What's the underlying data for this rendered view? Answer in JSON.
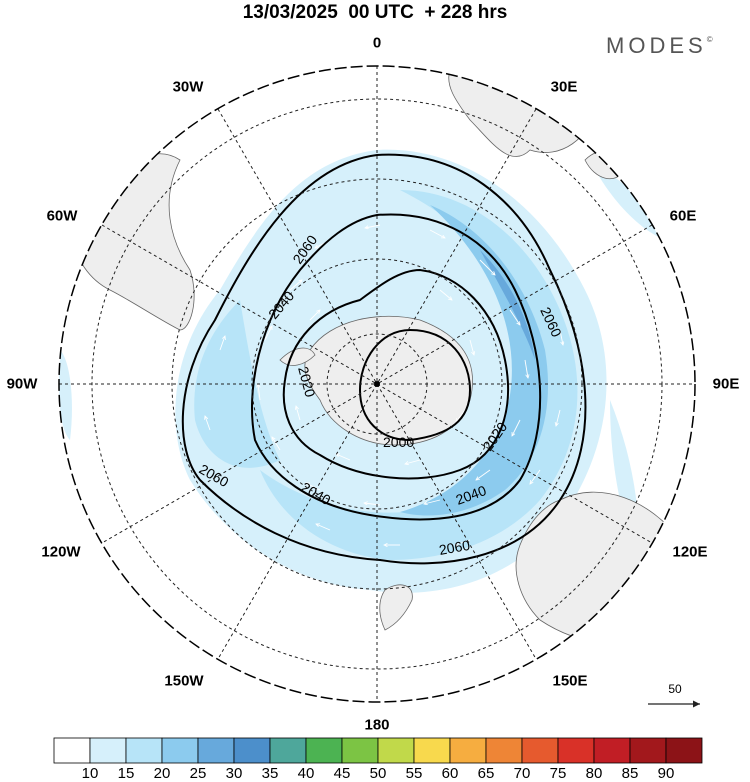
{
  "header": {
    "title": "13/03/2025  00 UTC  + 228 hrs",
    "brand": "MODES",
    "brand_mark": "©"
  },
  "map": {
    "projection": "south polar stereographic",
    "longitude_labels": [
      "0",
      "30E",
      "60E",
      "90E",
      "120E",
      "150E",
      "180",
      "150W",
      "120W",
      "90W",
      "60W",
      "30W"
    ],
    "contour_labels": [
      "2060",
      "2040",
      "2020",
      "2000",
      "2020",
      "2040",
      "2060",
      "2060",
      "2040",
      "2020"
    ],
    "contour_levels": [
      2000,
      2020,
      2040,
      2060
    ],
    "land_color": "#eeeeee",
    "contour_color": "#000000"
  },
  "reference_vector": {
    "label": "50"
  },
  "colorbar": {
    "labels": [
      "10",
      "15",
      "20",
      "25",
      "30",
      "35",
      "40",
      "45",
      "50",
      "55",
      "60",
      "65",
      "70",
      "75",
      "80",
      "85",
      "90"
    ],
    "colors": [
      "#ffffff",
      "#d6f0fb",
      "#b7e4f8",
      "#8ccbee",
      "#67a9dc",
      "#4c8fcb",
      "#4ea79b",
      "#4cb352",
      "#7cc444",
      "#c1d94a",
      "#f8d94d",
      "#f6ad40",
      "#ee8536",
      "#e65a2e",
      "#d93128",
      "#c11e25",
      "#a2181c",
      "#8c1317"
    ]
  }
}
